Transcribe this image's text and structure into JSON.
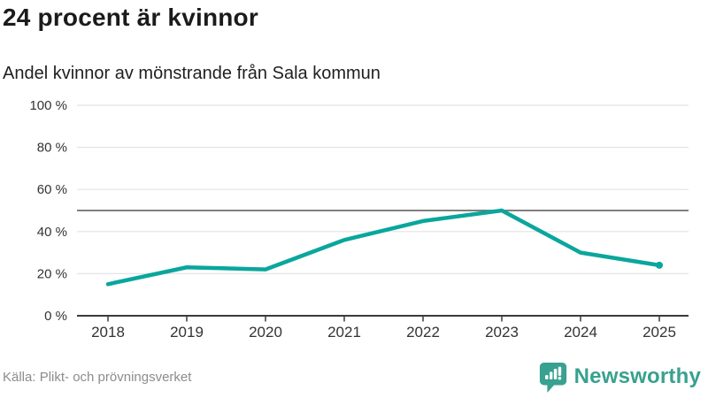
{
  "header": {
    "title": "24 procent är kvinnor",
    "subtitle": "Andel kvinnor av mönstrande från Sala kommun"
  },
  "chart_data": {
    "type": "line",
    "title": "24 procent är kvinnor",
    "subtitle": "Andel kvinnor av mönstrande från Sala kommun",
    "categories": [
      "2018",
      "2019",
      "2020",
      "2021",
      "2022",
      "2023",
      "2024",
      "2025"
    ],
    "values": [
      15,
      23,
      22,
      36,
      45,
      50,
      30,
      24
    ],
    "ylim": [
      0,
      100
    ],
    "yticks": [
      0,
      20,
      40,
      60,
      80,
      100
    ],
    "ytick_suffix": " %",
    "reference_line": 50,
    "grid": true,
    "legend": "none",
    "line_color": "#0aa69d",
    "grid_color": "#e4e4e4",
    "reference_line_color": "#6e6e6e",
    "axis_color": "#3a3a3a",
    "tick_label_color": "#333333"
  },
  "footer": {
    "source": "Källa: Plikt- och prövningsverket",
    "brand": "Newsworthy",
    "brand_color": "#38a18f"
  }
}
